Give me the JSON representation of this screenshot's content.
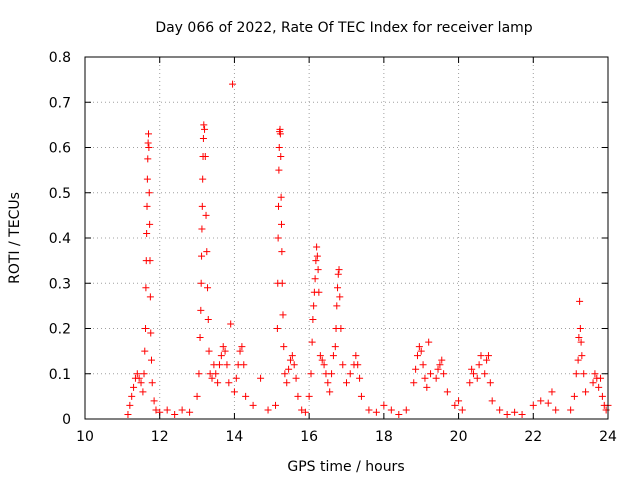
{
  "chart_data": {
    "type": "scatter",
    "title": "Day 066 of 2022, Rate Of TEC Index for receiver lamp",
    "xlabel": "GPS time / hours",
    "ylabel": "ROTI / TECUs",
    "xlim": [
      10,
      24
    ],
    "ylim": [
      0,
      0.8
    ],
    "xticks": [
      "10",
      "12",
      "14",
      "16",
      "18",
      "20",
      "22",
      "24"
    ],
    "yticks": [
      "0",
      "0.1",
      "0.2",
      "0.3",
      "0.4",
      "0.5",
      "0.6",
      "0.7",
      "0.8"
    ],
    "grid": true,
    "marker": "+",
    "color": "#ff0000",
    "series": [
      {
        "name": "ROTI",
        "points": [
          [
            11.15,
            0.01
          ],
          [
            11.2,
            0.03
          ],
          [
            11.25,
            0.05
          ],
          [
            11.3,
            0.07
          ],
          [
            11.35,
            0.09
          ],
          [
            11.4,
            0.1
          ],
          [
            11.45,
            0.09
          ],
          [
            11.5,
            0.08
          ],
          [
            11.55,
            0.06
          ],
          [
            11.58,
            0.1
          ],
          [
            11.6,
            0.15
          ],
          [
            11.62,
            0.2
          ],
          [
            11.63,
            0.29
          ],
          [
            11.64,
            0.35
          ],
          [
            11.65,
            0.41
          ],
          [
            11.66,
            0.47
          ],
          [
            11.67,
            0.53
          ],
          [
            11.68,
            0.575
          ],
          [
            11.69,
            0.61
          ],
          [
            11.7,
            0.63
          ],
          [
            11.71,
            0.6
          ],
          [
            11.72,
            0.5
          ],
          [
            11.73,
            0.43
          ],
          [
            11.74,
            0.35
          ],
          [
            11.75,
            0.27
          ],
          [
            11.76,
            0.19
          ],
          [
            11.78,
            0.13
          ],
          [
            11.8,
            0.08
          ],
          [
            11.85,
            0.04
          ],
          [
            11.9,
            0.02
          ],
          [
            12.0,
            0.015
          ],
          [
            12.2,
            0.02
          ],
          [
            12.4,
            0.01
          ],
          [
            12.6,
            0.02
          ],
          [
            12.8,
            0.015
          ],
          [
            13.0,
            0.05
          ],
          [
            13.05,
            0.1
          ],
          [
            13.08,
            0.18
          ],
          [
            13.1,
            0.24
          ],
          [
            13.11,
            0.3
          ],
          [
            13.12,
            0.36
          ],
          [
            13.13,
            0.42
          ],
          [
            13.14,
            0.47
          ],
          [
            13.15,
            0.53
          ],
          [
            13.16,
            0.58
          ],
          [
            13.17,
            0.62
          ],
          [
            13.18,
            0.65
          ],
          [
            13.2,
            0.64
          ],
          [
            13.22,
            0.58
          ],
          [
            13.24,
            0.45
          ],
          [
            13.26,
            0.37
          ],
          [
            13.28,
            0.29
          ],
          [
            13.3,
            0.22
          ],
          [
            13.32,
            0.15
          ],
          [
            13.35,
            0.1
          ],
          [
            13.4,
            0.09
          ],
          [
            13.45,
            0.12
          ],
          [
            13.5,
            0.1
          ],
          [
            13.55,
            0.08
          ],
          [
            13.6,
            0.12
          ],
          [
            13.65,
            0.14
          ],
          [
            13.7,
            0.16
          ],
          [
            13.75,
            0.15
          ],
          [
            13.8,
            0.12
          ],
          [
            13.85,
            0.08
          ],
          [
            13.9,
            0.21
          ],
          [
            13.95,
            0.74
          ],
          [
            14.0,
            0.06
          ],
          [
            14.05,
            0.09
          ],
          [
            14.1,
            0.12
          ],
          [
            14.15,
            0.15
          ],
          [
            14.2,
            0.16
          ],
          [
            14.25,
            0.12
          ],
          [
            14.3,
            0.05
          ],
          [
            14.5,
            0.03
          ],
          [
            14.7,
            0.09
          ],
          [
            14.9,
            0.02
          ],
          [
            15.1,
            0.03
          ],
          [
            15.15,
            0.2
          ],
          [
            15.16,
            0.3
          ],
          [
            15.17,
            0.4
          ],
          [
            15.18,
            0.47
          ],
          [
            15.19,
            0.55
          ],
          [
            15.2,
            0.6
          ],
          [
            15.21,
            0.635
          ],
          [
            15.22,
            0.64
          ],
          [
            15.23,
            0.63
          ],
          [
            15.24,
            0.58
          ],
          [
            15.25,
            0.49
          ],
          [
            15.26,
            0.43
          ],
          [
            15.27,
            0.37
          ],
          [
            15.28,
            0.3
          ],
          [
            15.3,
            0.23
          ],
          [
            15.32,
            0.16
          ],
          [
            15.35,
            0.1
          ],
          [
            15.4,
            0.08
          ],
          [
            15.45,
            0.11
          ],
          [
            15.5,
            0.13
          ],
          [
            15.55,
            0.14
          ],
          [
            15.6,
            0.12
          ],
          [
            15.65,
            0.09
          ],
          [
            15.7,
            0.05
          ],
          [
            15.8,
            0.02
          ],
          [
            15.9,
            0.015
          ],
          [
            16.0,
            0.05
          ],
          [
            16.05,
            0.1
          ],
          [
            16.08,
            0.17
          ],
          [
            16.1,
            0.22
          ],
          [
            16.12,
            0.25
          ],
          [
            16.14,
            0.28
          ],
          [
            16.16,
            0.31
          ],
          [
            16.18,
            0.35
          ],
          [
            16.2,
            0.38
          ],
          [
            16.22,
            0.36
          ],
          [
            16.24,
            0.33
          ],
          [
            16.26,
            0.28
          ],
          [
            16.3,
            0.14
          ],
          [
            16.35,
            0.13
          ],
          [
            16.4,
            0.12
          ],
          [
            16.45,
            0.1
          ],
          [
            16.5,
            0.08
          ],
          [
            16.55,
            0.06
          ],
          [
            16.6,
            0.1
          ],
          [
            16.65,
            0.14
          ],
          [
            16.7,
            0.16
          ],
          [
            16.72,
            0.2
          ],
          [
            16.74,
            0.25
          ],
          [
            16.76,
            0.29
          ],
          [
            16.78,
            0.32
          ],
          [
            16.8,
            0.33
          ],
          [
            16.82,
            0.27
          ],
          [
            16.85,
            0.2
          ],
          [
            16.9,
            0.12
          ],
          [
            17.0,
            0.08
          ],
          [
            17.1,
            0.1
          ],
          [
            17.2,
            0.12
          ],
          [
            17.25,
            0.14
          ],
          [
            17.3,
            0.12
          ],
          [
            17.35,
            0.09
          ],
          [
            17.4,
            0.05
          ],
          [
            17.6,
            0.02
          ],
          [
            17.8,
            0.015
          ],
          [
            18.0,
            0.03
          ],
          [
            18.2,
            0.02
          ],
          [
            18.4,
            0.01
          ],
          [
            18.6,
            0.02
          ],
          [
            18.8,
            0.08
          ],
          [
            18.85,
            0.11
          ],
          [
            18.9,
            0.14
          ],
          [
            18.95,
            0.16
          ],
          [
            19.0,
            0.15
          ],
          [
            19.05,
            0.12
          ],
          [
            19.1,
            0.09
          ],
          [
            19.15,
            0.07
          ],
          [
            19.2,
            0.17
          ],
          [
            19.25,
            0.1
          ],
          [
            19.4,
            0.09
          ],
          [
            19.45,
            0.11
          ],
          [
            19.5,
            0.12
          ],
          [
            19.55,
            0.13
          ],
          [
            19.6,
            0.1
          ],
          [
            19.7,
            0.06
          ],
          [
            19.9,
            0.03
          ],
          [
            20.0,
            0.04
          ],
          [
            20.1,
            0.02
          ],
          [
            20.3,
            0.08
          ],
          [
            20.35,
            0.11
          ],
          [
            20.4,
            0.1
          ],
          [
            20.5,
            0.09
          ],
          [
            20.55,
            0.12
          ],
          [
            20.6,
            0.14
          ],
          [
            20.7,
            0.1
          ],
          [
            20.75,
            0.13
          ],
          [
            20.8,
            0.14
          ],
          [
            20.85,
            0.08
          ],
          [
            20.9,
            0.04
          ],
          [
            21.1,
            0.02
          ],
          [
            21.3,
            0.01
          ],
          [
            21.5,
            0.015
          ],
          [
            21.7,
            0.01
          ],
          [
            22.0,
            0.03
          ],
          [
            22.2,
            0.04
          ],
          [
            22.4,
            0.035
          ],
          [
            22.5,
            0.06
          ],
          [
            22.6,
            0.02
          ],
          [
            23.0,
            0.02
          ],
          [
            23.1,
            0.05
          ],
          [
            23.15,
            0.1
          ],
          [
            23.2,
            0.13
          ],
          [
            23.22,
            0.18
          ],
          [
            23.24,
            0.26
          ],
          [
            23.26,
            0.2
          ],
          [
            23.28,
            0.17
          ],
          [
            23.3,
            0.14
          ],
          [
            23.35,
            0.1
          ],
          [
            23.4,
            0.06
          ],
          [
            23.6,
            0.08
          ],
          [
            23.65,
            0.1
          ],
          [
            23.7,
            0.09
          ],
          [
            23.75,
            0.07
          ],
          [
            23.8,
            0.09
          ],
          [
            23.85,
            0.05
          ],
          [
            23.9,
            0.03
          ],
          [
            23.95,
            0.02
          ],
          [
            24.0,
            0.03
          ]
        ]
      }
    ]
  }
}
